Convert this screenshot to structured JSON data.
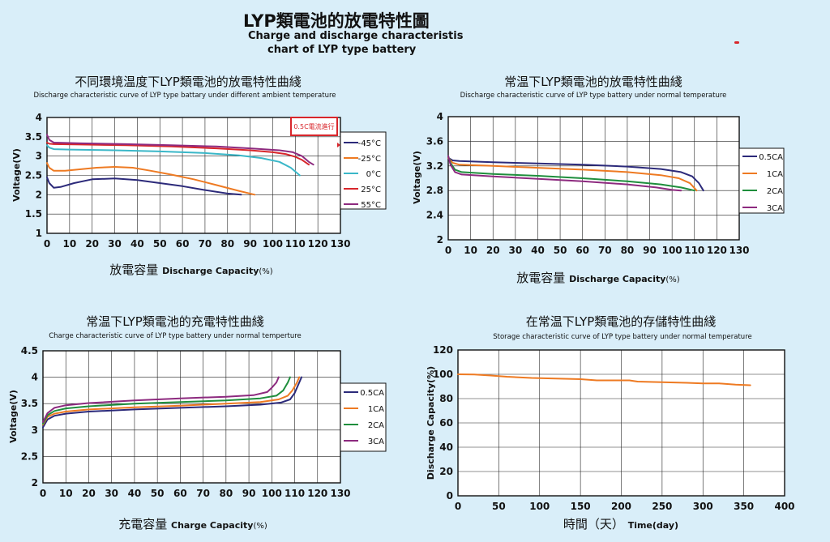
{
  "header": {
    "title": "LYP類電池的放電特性圖",
    "subtitle_en_1": "Charge and discharge characteristis",
    "subtitle_en_2": "chart of LYP type battery"
  },
  "chart_data": [
    {
      "type": "line",
      "title": "不同環境温度下LYP類電池的放電特性曲綫",
      "subtitle": "Discharge characteristic curve of LYP type battary under different ambient temperature",
      "xlabel_cn": "放電容量",
      "xlabel_en": "Discharge Capacity",
      "xlabel_unit": "(%)",
      "ylabel": "Voltage(V)",
      "xlim": [
        0,
        130
      ],
      "ylim": [
        1,
        4
      ],
      "xticks": [
        0,
        10,
        20,
        30,
        40,
        50,
        60,
        70,
        80,
        90,
        100,
        110,
        120,
        130
      ],
      "yticks": [
        1,
        1.5,
        2,
        2.5,
        3,
        3.5,
        4
      ],
      "xtick_labels": [
        "0",
        "10",
        "20",
        "30",
        "40",
        "50",
        "60",
        "70",
        "80",
        "90",
        "100",
        "110",
        "120",
        "130"
      ],
      "ytick_labels": [
        "1",
        "1.5",
        "2",
        "2.5",
        "3",
        "3.5",
        "4"
      ],
      "grid": true,
      "legend": "right",
      "annotation": "0.5C電流進行",
      "series": [
        {
          "name": "-45°C",
          "color": "#2c2a7a",
          "points": [
            [
              0,
              2.45
            ],
            [
              1,
              2.3
            ],
            [
              3,
              2.18
            ],
            [
              6,
              2.2
            ],
            [
              12,
              2.3
            ],
            [
              20,
              2.4
            ],
            [
              30,
              2.42
            ],
            [
              40,
              2.38
            ],
            [
              50,
              2.3
            ],
            [
              60,
              2.22
            ],
            [
              70,
              2.12
            ],
            [
              80,
              2.03
            ],
            [
              86,
              2.0
            ]
          ]
        },
        {
          "name": "-25°C",
          "color": "#ee7a22",
          "points": [
            [
              0,
              2.82
            ],
            [
              1,
              2.7
            ],
            [
              3,
              2.62
            ],
            [
              8,
              2.62
            ],
            [
              15,
              2.66
            ],
            [
              22,
              2.7
            ],
            [
              30,
              2.72
            ],
            [
              38,
              2.7
            ],
            [
              46,
              2.62
            ],
            [
              55,
              2.52
            ],
            [
              65,
              2.4
            ],
            [
              75,
              2.25
            ],
            [
              85,
              2.1
            ],
            [
              92,
              2.0
            ]
          ]
        },
        {
          "name": "0°C",
          "color": "#3ab7c8",
          "points": [
            [
              0,
              3.28
            ],
            [
              1,
              3.22
            ],
            [
              3,
              3.18
            ],
            [
              10,
              3.17
            ],
            [
              30,
              3.15
            ],
            [
              50,
              3.12
            ],
            [
              70,
              3.08
            ],
            [
              85,
              3.02
            ],
            [
              95,
              2.95
            ],
            [
              103,
              2.85
            ],
            [
              108,
              2.7
            ],
            [
              112,
              2.5
            ]
          ]
        },
        {
          "name": "25°C",
          "color": "#d8262b",
          "points": [
            [
              0,
              3.35
            ],
            [
              1,
              3.32
            ],
            [
              3,
              3.31
            ],
            [
              15,
              3.3
            ],
            [
              35,
              3.28
            ],
            [
              55,
              3.25
            ],
            [
              75,
              3.2
            ],
            [
              90,
              3.15
            ],
            [
              100,
              3.1
            ],
            [
              106,
              3.05
            ],
            [
              110,
              2.98
            ],
            [
              113,
              2.9
            ],
            [
              116,
              2.78
            ]
          ]
        },
        {
          "name": "55°C",
          "color": "#8d2a7f",
          "points": [
            [
              0,
              3.55
            ],
            [
              1,
              3.42
            ],
            [
              3,
              3.35
            ],
            [
              15,
              3.33
            ],
            [
              35,
              3.31
            ],
            [
              55,
              3.28
            ],
            [
              75,
              3.25
            ],
            [
              90,
              3.2
            ],
            [
              103,
              3.15
            ],
            [
              109,
              3.1
            ],
            [
              113,
              3.0
            ],
            [
              116,
              2.85
            ],
            [
              118,
              2.78
            ]
          ]
        }
      ]
    },
    {
      "type": "line",
      "title": "常温下LYP類電池的放電特性曲綫",
      "subtitle": "Discharge characteristic curve of LYP type battery under normal temperature",
      "xlabel_cn": "放電容量",
      "xlabel_en": "Discharge Capacity",
      "xlabel_unit": "(%)",
      "ylabel": "Voltage(V)",
      "xlim": [
        0,
        130
      ],
      "ylim": [
        2,
        4
      ],
      "xticks": [
        0,
        10,
        20,
        30,
        40,
        50,
        60,
        70,
        80,
        90,
        100,
        110,
        120,
        130
      ],
      "yticks": [
        2,
        2.4,
        2.8,
        3.2,
        3.6,
        4
      ],
      "xtick_labels": [
        "0",
        "10",
        "20",
        "30",
        "40",
        "50",
        "60",
        "70",
        "80",
        "90",
        "100",
        "110",
        "120",
        "130"
      ],
      "ytick_labels": [
        "2",
        "2.4",
        "2.8",
        "3.2",
        "3.6",
        "4"
      ],
      "grid": true,
      "legend": "right",
      "series": [
        {
          "name": "0.5CA",
          "color": "#2c2a7a",
          "points": [
            [
              0,
              3.33
            ],
            [
              2,
              3.29
            ],
            [
              5,
              3.28
            ],
            [
              20,
              3.26
            ],
            [
              40,
              3.24
            ],
            [
              60,
              3.22
            ],
            [
              80,
              3.19
            ],
            [
              95,
              3.15
            ],
            [
              104,
              3.1
            ],
            [
              109,
              3.03
            ],
            [
              112,
              2.92
            ],
            [
              114,
              2.8
            ]
          ]
        },
        {
          "name": "1CA",
          "color": "#ee7a22",
          "points": [
            [
              0,
              3.33
            ],
            [
              2,
              3.25
            ],
            [
              5,
              3.22
            ],
            [
              20,
              3.2
            ],
            [
              40,
              3.17
            ],
            [
              60,
              3.14
            ],
            [
              80,
              3.1
            ],
            [
              95,
              3.05
            ],
            [
              103,
              3.0
            ],
            [
              108,
              2.92
            ],
            [
              111,
              2.8
            ]
          ]
        },
        {
          "name": "2CA",
          "color": "#1e8e3c",
          "points": [
            [
              0,
              3.36
            ],
            [
              1,
              3.25
            ],
            [
              3,
              3.14
            ],
            [
              6,
              3.1
            ],
            [
              20,
              3.07
            ],
            [
              40,
              3.04
            ],
            [
              60,
              3.0
            ],
            [
              80,
              2.95
            ],
            [
              95,
              2.9
            ],
            [
              104,
              2.85
            ],
            [
              110,
              2.8
            ]
          ]
        },
        {
          "name": "3CA",
          "color": "#8d2a7f",
          "points": [
            [
              0,
              3.36
            ],
            [
              1,
              3.22
            ],
            [
              3,
              3.1
            ],
            [
              6,
              3.06
            ],
            [
              20,
              3.03
            ],
            [
              40,
              2.99
            ],
            [
              60,
              2.95
            ],
            [
              80,
              2.9
            ],
            [
              93,
              2.85
            ],
            [
              100,
              2.81
            ],
            [
              104,
              2.8
            ]
          ]
        }
      ]
    },
    {
      "type": "line",
      "title": "常温下LYP類電池的充電特性曲綫",
      "subtitle": "Charge characteristic curve of LYP type battery under normal temperture",
      "xlabel_cn": "充電容量",
      "xlabel_en": "Charge Capacity",
      "xlabel_unit": "(%)",
      "ylabel": "Voltage(V)",
      "xlim": [
        0,
        130
      ],
      "ylim": [
        2,
        4.5
      ],
      "xticks": [
        0,
        10,
        20,
        30,
        40,
        50,
        60,
        70,
        80,
        90,
        100,
        110,
        120,
        130
      ],
      "yticks": [
        2,
        2.5,
        3,
        3.5,
        4,
        4.5
      ],
      "xtick_labels": [
        "0",
        "10",
        "20",
        "30",
        "40",
        "50",
        "60",
        "70",
        "80",
        "90",
        "100",
        "110",
        "120",
        "130"
      ],
      "ytick_labels": [
        "2",
        "2.5",
        "3",
        "3.5",
        "4",
        "4.5"
      ],
      "grid": true,
      "legend": "right",
      "series": [
        {
          "name": "0.5CA",
          "color": "#2c2a7a",
          "points": [
            [
              0,
              3.05
            ],
            [
              2,
              3.2
            ],
            [
              5,
              3.27
            ],
            [
              10,
              3.31
            ],
            [
              20,
              3.35
            ],
            [
              40,
              3.39
            ],
            [
              60,
              3.42
            ],
            [
              80,
              3.45
            ],
            [
              95,
              3.48
            ],
            [
              104,
              3.52
            ],
            [
              108,
              3.58
            ],
            [
              110,
              3.7
            ],
            [
              112,
              3.9
            ],
            [
              113,
              4.0
            ]
          ]
        },
        {
          "name": "1CA",
          "color": "#ee7a22",
          "points": [
            [
              0,
              3.1
            ],
            [
              2,
              3.25
            ],
            [
              5,
              3.31
            ],
            [
              10,
              3.35
            ],
            [
              20,
              3.39
            ],
            [
              40,
              3.43
            ],
            [
              60,
              3.46
            ],
            [
              80,
              3.5
            ],
            [
              95,
              3.53
            ],
            [
              103,
              3.58
            ],
            [
              107,
              3.65
            ],
            [
              109,
              3.75
            ],
            [
              111,
              3.9
            ],
            [
              112,
              4.0
            ]
          ]
        },
        {
          "name": "2CA",
          "color": "#1e8e3c",
          "points": [
            [
              0,
              3.12
            ],
            [
              2,
              3.28
            ],
            [
              5,
              3.36
            ],
            [
              10,
              3.41
            ],
            [
              20,
              3.45
            ],
            [
              40,
              3.5
            ],
            [
              60,
              3.53
            ],
            [
              80,
              3.56
            ],
            [
              95,
              3.6
            ],
            [
              102,
              3.65
            ],
            [
              105,
              3.75
            ],
            [
              107,
              3.9
            ],
            [
              108,
              4.0
            ]
          ]
        },
        {
          "name": "3CA",
          "color": "#8d2a7f",
          "points": [
            [
              0,
              3.15
            ],
            [
              2,
              3.32
            ],
            [
              5,
              3.42
            ],
            [
              10,
              3.47
            ],
            [
              20,
              3.51
            ],
            [
              40,
              3.56
            ],
            [
              60,
              3.6
            ],
            [
              80,
              3.63
            ],
            [
              92,
              3.66
            ],
            [
              98,
              3.72
            ],
            [
              100,
              3.8
            ],
            [
              102,
              3.9
            ],
            [
              103,
              4.0
            ]
          ]
        }
      ]
    },
    {
      "type": "line",
      "title": "在常温下LYP類電池的存儲特性曲綫",
      "subtitle": "Storage characteristic curve of LYP type battery under normal temperature",
      "xlabel_cn": "時間（天）",
      "xlabel_en": "Time(day)",
      "xlabel_unit": "",
      "ylabel": "Discharge Capacity(%)",
      "xlim": [
        0,
        400
      ],
      "ylim": [
        0,
        120
      ],
      "xticks": [
        0,
        50,
        100,
        150,
        200,
        250,
        300,
        350,
        400
      ],
      "yticks": [
        0,
        20,
        40,
        60,
        80,
        100,
        120
      ],
      "xtick_labels": [
        "0",
        "50",
        "100",
        "150",
        "200",
        "250",
        "300",
        "350",
        "400"
      ],
      "ytick_labels": [
        "0",
        "20",
        "40",
        "60",
        "80",
        "100",
        "120"
      ],
      "grid": true,
      "legend": "none",
      "series": [
        {
          "name": "",
          "color": "#ee7a22",
          "points": [
            [
              0,
              100
            ],
            [
              20,
              99.8
            ],
            [
              40,
              99
            ],
            [
              60,
              98
            ],
            [
              90,
              97
            ],
            [
              120,
              96.5
            ],
            [
              150,
              96
            ],
            [
              170,
              95
            ],
            [
              190,
              95
            ],
            [
              210,
              95
            ],
            [
              220,
              94
            ],
            [
              250,
              93.5
            ],
            [
              280,
              93
            ],
            [
              300,
              92.5
            ],
            [
              320,
              92.5
            ],
            [
              340,
              91.5
            ],
            [
              358,
              91
            ]
          ]
        }
      ]
    }
  ]
}
